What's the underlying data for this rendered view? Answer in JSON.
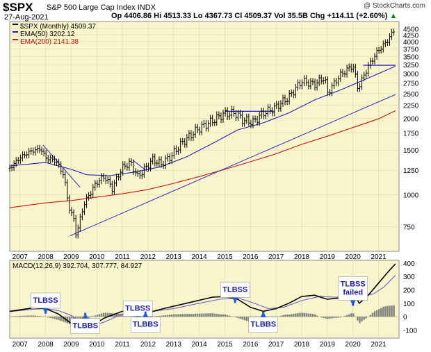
{
  "header": {
    "ticker": "$SPX",
    "name": "S&P 500 Large Cap Index",
    "exchange": "INDX",
    "date": "27-Aug-2021",
    "quote": "Op 4406.86  Hi 4513.33  Lo 4367.73  Cl 4509.37  Vol 35.5B  Chg +114.11 (+2.60%)",
    "arrow": "▲",
    "credit": "@ StockCharts.com"
  },
  "colors": {
    "background": "#f8f5cc",
    "price": "#000000",
    "ema50": "#1f1fbf",
    "ema200": "#cc1111",
    "trendline": "#2a2acc",
    "macd": "#000000",
    "signal": "#6a5acd",
    "histogram": "#808080",
    "callout_bg": "#ffffff",
    "callout_text": "#1c1cb0",
    "arrow": "#1e5bd8"
  },
  "chart_data": [
    {
      "type": "line",
      "title": "$SPX (Monthly) 4509.37",
      "y_scale": "log",
      "ylim": [
        600,
        4800
      ],
      "xlim": [
        2006.6,
        2021.8
      ],
      "x_ticks": [
        "2007",
        "2008",
        "2009",
        "2010",
        "2011",
        "2012",
        "2013",
        "2014",
        "2015",
        "2016",
        "2017",
        "2018",
        "2019",
        "2020",
        "2021"
      ],
      "y_ticks": [
        750,
        1000,
        1250,
        1500,
        1750,
        2000,
        2250,
        2500,
        2750,
        3000,
        3250,
        3500,
        3750,
        4000,
        4250,
        4500
      ],
      "legend": [
        {
          "label": "$SPX (Monthly) 4509.37",
          "key": "price"
        },
        {
          "label": "EMA(50) 3202.12",
          "key": "ema50"
        },
        {
          "label": "EMA(200) 2141.38",
          "key": "ema200"
        }
      ],
      "series": [
        {
          "name": "$SPX (Monthly)",
          "x": [
            2006.6,
            2007.0,
            2007.4,
            2007.8,
            2008.0,
            2008.4,
            2008.7,
            2008.9,
            2009.1,
            2009.2,
            2009.5,
            2010.0,
            2010.3,
            2010.6,
            2011.0,
            2011.3,
            2011.6,
            2011.8,
            2012.2,
            2012.5,
            2012.9,
            2013.3,
            2013.9,
            2014.5,
            2014.95,
            2015.4,
            2015.7,
            2016.1,
            2016.5,
            2016.9,
            2017.5,
            2018.0,
            2018.5,
            2018.9,
            2019.0,
            2019.5,
            2020.0,
            2020.2,
            2020.3,
            2020.6,
            2021.0,
            2021.3,
            2021.66
          ],
          "values": [
            1270,
            1400,
            1480,
            1520,
            1400,
            1360,
            1200,
            900,
            800,
            690,
            920,
            1120,
            1180,
            1060,
            1280,
            1340,
            1180,
            1240,
            1380,
            1320,
            1420,
            1590,
            1800,
            1950,
            2080,
            2100,
            1970,
            1930,
            2100,
            2180,
            2420,
            2800,
            2720,
            2900,
            2500,
            2950,
            3230,
            2600,
            2750,
            3200,
            3710,
            3970,
            4509
          ]
        },
        {
          "name": "EMA(50)",
          "x": [
            2006.6,
            2008.0,
            2009.0,
            2009.6,
            2010.5,
            2011.5,
            2012.5,
            2013.5,
            2014.5,
            2015.5,
            2016.5,
            2017.5,
            2018.5,
            2019.5,
            2020.5,
            2021.66
          ],
          "values": [
            1300,
            1340,
            1260,
            1200,
            1190,
            1230,
            1290,
            1410,
            1590,
            1800,
            1920,
            2100,
            2360,
            2580,
            2850,
            3202
          ]
        },
        {
          "name": "EMA(200)",
          "x": [
            2006.6,
            2008.0,
            2009.0,
            2010.0,
            2011.0,
            2012.0,
            2013.0,
            2014.0,
            2015.0,
            2016.0,
            2017.0,
            2018.0,
            2019.0,
            2020.0,
            2021.0,
            2021.66
          ],
          "values": [
            890,
            930,
            950,
            980,
            1010,
            1050,
            1110,
            1180,
            1260,
            1350,
            1450,
            1580,
            1700,
            1840,
            1990,
            2141
          ]
        }
      ],
      "trendlines": [
        {
          "x": [
            2008.95,
            2021.66
          ],
          "values": [
            690,
            2480
          ]
        },
        {
          "x": [
            2015.0,
            2016.95
          ],
          "values": [
            2130,
            2130
          ]
        },
        {
          "x": [
            2020.4,
            2021.66
          ],
          "values": [
            3230,
            3230
          ]
        },
        {
          "x": [
            2007.9,
            2009.35
          ],
          "values": [
            1570,
            1070
          ]
        },
        {
          "x": [
            2011.4,
            2012.0
          ],
          "values": [
            1370,
            1230
          ]
        }
      ]
    },
    {
      "type": "line",
      "title": "MACD(12,26,9) 392.704, 307.777, 84.927",
      "ylim": [
        -160,
        420
      ],
      "xlim": [
        2006.6,
        2021.8
      ],
      "x_ticks": [
        "2007",
        "2008",
        "2009",
        "2010",
        "2011",
        "2012",
        "2013",
        "2014",
        "2015",
        "2016",
        "2017",
        "2018",
        "2019",
        "2020",
        "2021"
      ],
      "y_ticks": [
        -100,
        0,
        100,
        200,
        300,
        400
      ],
      "series": [
        {
          "name": "MACD",
          "x": [
            2006.6,
            2007.5,
            2008.0,
            2008.5,
            2009.0,
            2009.4,
            2009.7,
            2010.3,
            2011.0,
            2011.6,
            2012.0,
            2012.6,
            2013.5,
            2014.5,
            2015.0,
            2015.5,
            2016.0,
            2016.5,
            2017.0,
            2017.5,
            2018.0,
            2018.5,
            2019.0,
            2019.5,
            2020.0,
            2020.25,
            2020.6,
            2021.0,
            2021.4,
            2021.66
          ],
          "values": [
            40,
            65,
            60,
            20,
            -50,
            -110,
            -80,
            -10,
            40,
            50,
            30,
            60,
            100,
            145,
            150,
            130,
            70,
            40,
            60,
            100,
            150,
            160,
            130,
            140,
            180,
            100,
            160,
            250,
            340,
            393
          ]
        },
        {
          "name": "Signal",
          "x": [
            2006.6,
            2007.5,
            2008.0,
            2008.5,
            2009.0,
            2009.4,
            2009.8,
            2010.3,
            2011.0,
            2011.6,
            2012.2,
            2013.0,
            2014.0,
            2014.8,
            2015.5,
            2016.0,
            2016.7,
            2017.3,
            2018.0,
            2018.7,
            2019.3,
            2019.8,
            2020.3,
            2020.8,
            2021.2,
            2021.66
          ],
          "values": [
            38,
            55,
            60,
            45,
            10,
            -50,
            -70,
            -40,
            20,
            40,
            40,
            60,
            100,
            130,
            140,
            110,
            60,
            70,
            120,
            150,
            145,
            150,
            150,
            170,
            220,
            308
          ]
        }
      ],
      "callouts": [
        {
          "label": "TLBSS",
          "x": 2008.0,
          "y": 120
        },
        {
          "label": "TLBBS",
          "x": 2009.55,
          "y": -70
        },
        {
          "label": "TLBSS",
          "x": 2011.6,
          "y": 60
        },
        {
          "label": "TLBBS",
          "x": 2011.9,
          "y": -60
        },
        {
          "label": "TLBSS",
          "x": 2015.4,
          "y": 200
        },
        {
          "label": "TLBBS",
          "x": 2016.5,
          "y": -60
        },
        {
          "label": "TLBSS failed",
          "x": 2020.0,
          "y": 210
        }
      ]
    }
  ]
}
